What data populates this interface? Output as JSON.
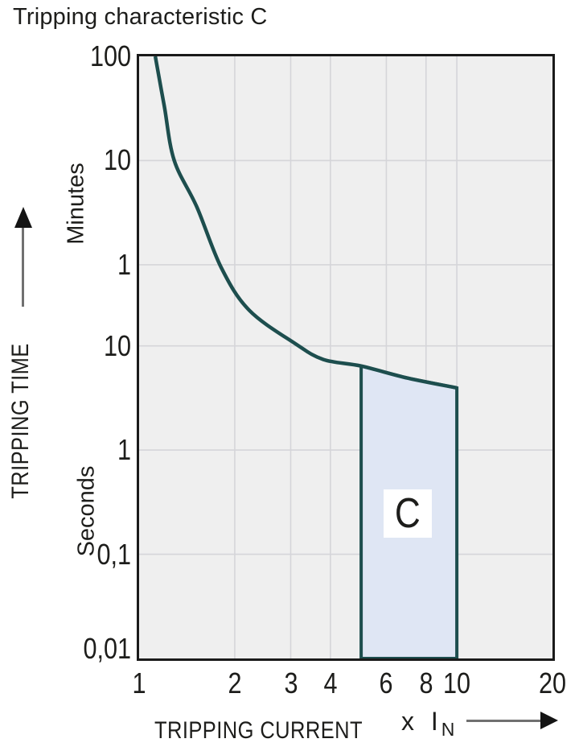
{
  "title": "Tripping characteristic C",
  "axes": {
    "y_caption": "TRIPPING TIME",
    "y_unit_top": "Minutes",
    "y_unit_bottom": "Seconds",
    "x_caption": "TRIPPING CURRENT",
    "x_unit_prefix": "x I",
    "x_unit_sub": "N"
  },
  "colors": {
    "curve": "#1d4e4e",
    "band_fill": "#dfe6f4",
    "plot_bg": "#efefef",
    "grid": "#d5d5d9",
    "border": "#1a1a1a",
    "text": "#1d1d1b",
    "arrow_line": "#707070"
  },
  "chart_data": {
    "type": "line",
    "title": "Tripping characteristic C",
    "xlabel": "TRIPPING CURRENT x IN",
    "ylabel": "TRIPPING TIME",
    "x_scale": "log",
    "y_scale": "log",
    "x_range": [
      1,
      20
    ],
    "y_range_seconds": [
      0.01,
      6000
    ],
    "grid": true,
    "x_ticks": [
      {
        "label": "1",
        "value": 1
      },
      {
        "label": "2",
        "value": 2
      },
      {
        "label": "3",
        "value": 3
      },
      {
        "label": "4",
        "value": 4
      },
      {
        "label": "6",
        "value": 6
      },
      {
        "label": "8",
        "value": 8
      },
      {
        "label": "10",
        "value": 10
      },
      {
        "label": "20",
        "value": 20
      }
    ],
    "y_ticks": [
      {
        "label": "100",
        "unit": "minutes",
        "seconds": 6000
      },
      {
        "label": "10",
        "unit": "minutes",
        "seconds": 600
      },
      {
        "label": "1",
        "unit": "minutes",
        "seconds": 60
      },
      {
        "label": "10",
        "unit": "seconds",
        "seconds": 10
      },
      {
        "label": "1",
        "unit": "seconds",
        "seconds": 1
      },
      {
        "label": "0,1",
        "unit": "seconds",
        "seconds": 0.1
      },
      {
        "label": "0,01",
        "unit": "seconds",
        "seconds": 0.01
      }
    ],
    "x_gridlines": [
      2,
      3,
      4,
      6,
      8,
      10
    ],
    "y_gridlines_seconds": [
      600,
      60,
      10,
      1,
      0.1
    ],
    "curve": {
      "name": "thermal-trip-curve",
      "points": [
        [
          1.124,
          6000
        ],
        [
          1.2,
          2000
        ],
        [
          1.29,
          600
        ],
        [
          1.52,
          215
        ],
        [
          1.81,
          57
        ],
        [
          2.22,
          22
        ],
        [
          3.1,
          10.5
        ],
        [
          3.8,
          7.4
        ],
        [
          5,
          6.4
        ],
        [
          7,
          4.9
        ],
        [
          10,
          3.95
        ]
      ]
    },
    "band": {
      "label": "C",
      "x_from": 5,
      "x_to": 10,
      "bottom_seconds": 0.01
    }
  }
}
